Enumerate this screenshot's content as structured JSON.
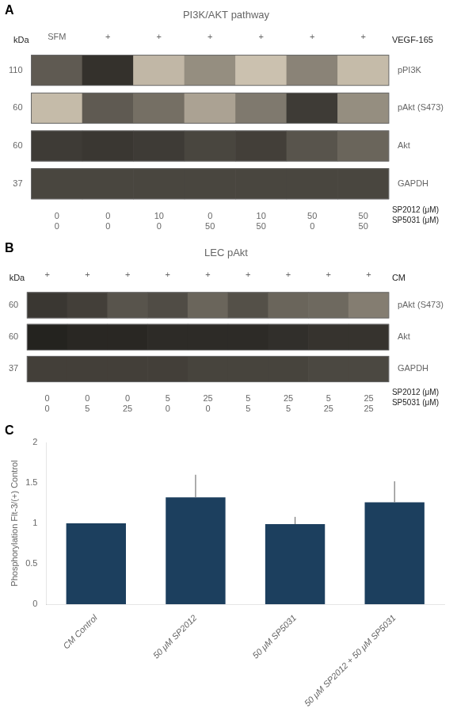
{
  "chart_data": [
    {
      "type": "blot",
      "panel_label": "A",
      "title": "PI3K/AKT pathway",
      "y_title": "kDa",
      "x_header": [
        "SFM",
        "+",
        "+",
        "+",
        "+",
        "+",
        "+"
      ],
      "x_header_label": "VEGF-165",
      "kDa_labels": [
        110,
        60,
        60,
        37
      ],
      "band_labels": [
        "pPI3K",
        "pAkt (S473)",
        "Akt",
        "GAPDH"
      ],
      "cells": [
        [
          0.55,
          0.75,
          0.1,
          0.3,
          0.05,
          0.35,
          0.08
        ],
        [
          0.08,
          0.55,
          0.45,
          0.2,
          0.4,
          0.7,
          0.3
        ],
        [
          0.7,
          0.72,
          0.7,
          0.65,
          0.68,
          0.58,
          0.5
        ],
        [
          0.65,
          0.65,
          0.65,
          0.65,
          0.65,
          0.65,
          0.65
        ]
      ],
      "rows": [
        {
          "name": "SP2012 (μM)",
          "values": [
            0,
            0,
            10,
            0,
            10,
            50,
            50
          ]
        },
        {
          "name": "SP5031 (μM)",
          "values": [
            0,
            0,
            0,
            50,
            50,
            0,
            50
          ]
        }
      ]
    },
    {
      "type": "blot",
      "panel_label": "B",
      "title": "LEC pAkt",
      "y_title": "kDa",
      "x_header": [
        "+",
        "+",
        "+",
        "+",
        "+",
        "+",
        "+",
        "+",
        "+"
      ],
      "x_header_label": "CM",
      "kDa_labels": [
        60,
        60,
        37
      ],
      "band_labels": [
        "pAkt (S473)",
        "Akt",
        "GAPDH"
      ],
      "cells": [
        [
          0.72,
          0.68,
          0.58,
          0.62,
          0.5,
          0.6,
          0.5,
          0.48,
          0.38
        ],
        [
          0.82,
          0.8,
          0.8,
          0.78,
          0.78,
          0.78,
          0.76,
          0.74,
          0.74
        ],
        [
          0.68,
          0.68,
          0.68,
          0.68,
          0.66,
          0.66,
          0.66,
          0.64,
          0.64
        ]
      ],
      "rows": [
        {
          "name": "SP2012 (μM)",
          "values": [
            0,
            0,
            0,
            5,
            25,
            5,
            25,
            5,
            25
          ]
        },
        {
          "name": "SP5031 (μM)",
          "values": [
            0,
            5,
            25,
            0,
            0,
            5,
            5,
            25,
            25
          ]
        }
      ]
    },
    {
      "type": "bar",
      "panel_label": "C",
      "categories": [
        "CM Control",
        "50 μM SP2012",
        "50 μM SP5031",
        "50 μM SP2012 + 50 μM SP5031"
      ],
      "values": [
        1.0,
        1.32,
        0.99,
        1.26
      ],
      "errors": [
        0.0,
        0.28,
        0.09,
        0.26
      ],
      "color": "#1c3f5e",
      "ylabel": "Phosphorylation Flt-3/(+) Control",
      "ylim": [
        0,
        2
      ],
      "yticks": [
        0,
        0.5,
        1,
        1.5,
        2
      ],
      "grid": false
    }
  ]
}
